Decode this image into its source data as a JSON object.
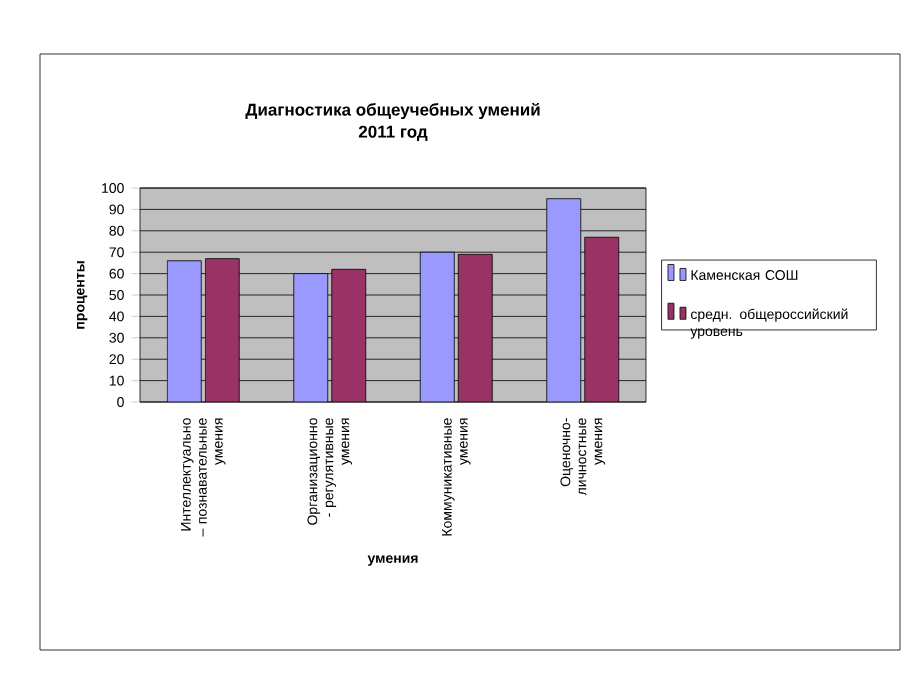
{
  "chart_data": {
    "type": "bar",
    "title": "Диагностика общеучебных умений",
    "subtitle": "2011 год",
    "xlabel": "умения",
    "ylabel": "проценты",
    "categories": [
      "Интеллектуально – познавательные умения",
      "Организационно - регулятивные умения",
      "Коммуникативные умения",
      "Оценочно-личностные умения"
    ],
    "series": [
      {
        "name": "Каменская СОШ",
        "color": "#9999ff",
        "values": [
          66,
          60,
          70,
          95
        ]
      },
      {
        "name": "средн. общероссийский уровень",
        "color": "#993366",
        "values": [
          67,
          62,
          69,
          77
        ]
      }
    ],
    "ylim": [
      0,
      100
    ],
    "yticks": [
      0,
      10,
      20,
      30,
      40,
      50,
      60,
      70,
      80,
      90,
      100
    ],
    "grid": "y",
    "legend": "right"
  }
}
